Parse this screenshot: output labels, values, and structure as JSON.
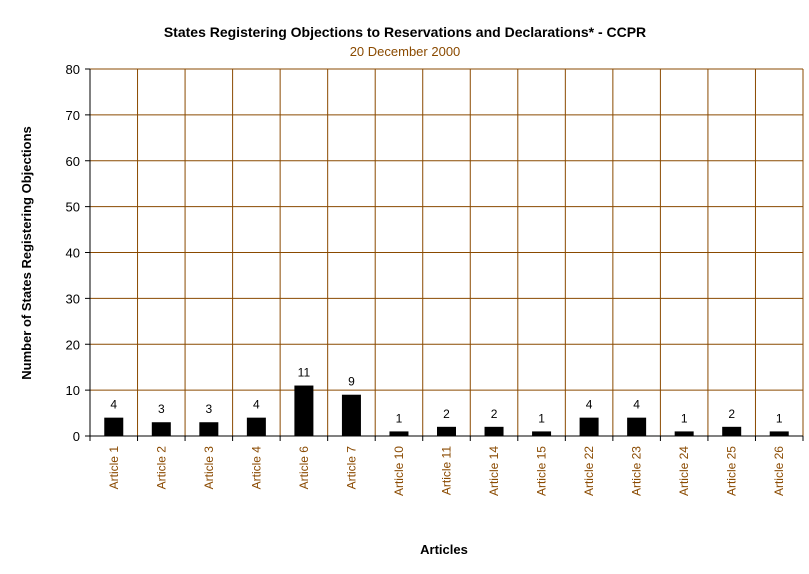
{
  "chart_data": {
    "type": "bar",
    "title": "States Registering Objections to Reservations and Declarations* - CCPR",
    "subtitle": "20 December 2000",
    "xlabel": "Articles",
    "ylabel": "Number of States Registering Objections",
    "categories": [
      "Article 1",
      "Article 2",
      "Article 3",
      "Article 4",
      "Article 6",
      "Article 7",
      "Article 10",
      "Article 11",
      "Article 14",
      "Article 15",
      "Article 22",
      "Article 23",
      "Article 24",
      "Article 25",
      "Article 26"
    ],
    "values": [
      4,
      3,
      3,
      4,
      11,
      9,
      1,
      2,
      2,
      1,
      4,
      4,
      1,
      2,
      1
    ],
    "ylim": [
      0,
      80
    ],
    "yticks": [
      0,
      10,
      20,
      30,
      40,
      50,
      60,
      70,
      80
    ],
    "grid": true,
    "data_labels": true,
    "colors": {
      "bar": "#000000",
      "grid": "#8a4a00",
      "subtitle_text": "#8a4a00",
      "tick_text": "#8a4a00"
    }
  }
}
